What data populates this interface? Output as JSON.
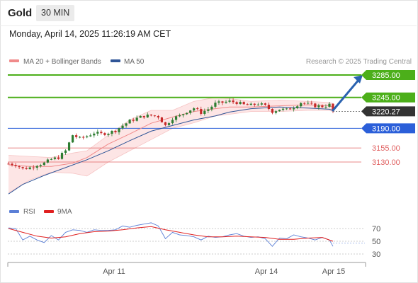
{
  "header": {
    "instrument": "Gold",
    "timeframe": "30 MIN"
  },
  "timestamp": "Monday, April 14, 2025 11:26:19 AM CET",
  "legend": {
    "items": [
      {
        "label": "MA 20 + Bollinger Bands",
        "color": "#f08a8a"
      },
      {
        "label": "MA 50",
        "color": "#2f5597"
      }
    ],
    "credit": "Research © 2025 Trading Central"
  },
  "indicator_legend": {
    "items": [
      {
        "label": "RSI",
        "color": "#5b7fd6"
      },
      {
        "label": "9MA",
        "color": "#e02020"
      }
    ]
  },
  "colors": {
    "resistance": "#4caf1a",
    "support_primary": "#2b5fd9",
    "support_secondary": "#e06060",
    "current_price_bg": "#333333",
    "arrow": "#2a62b0",
    "bull_candle": "#2e7d32",
    "bear_candle": "#c62828",
    "band_fill": "#fde0e0"
  },
  "chart_data": [
    {
      "type": "candlestick",
      "title": "Gold",
      "ylim": [
        3065,
        3300
      ],
      "x_ticks": [
        "Apr 11",
        "Apr 14",
        "Apr 15"
      ],
      "levels": [
        {
          "value": 3285.0,
          "label": "3285.00",
          "kind": "resistance"
        },
        {
          "value": 3245.0,
          "label": "3245.00",
          "kind": "resistance"
        },
        {
          "value": 3220.27,
          "label": "3220.27",
          "kind": "current"
        },
        {
          "value": 3190.0,
          "label": "3190.00",
          "kind": "support-primary"
        },
        {
          "value": 3155.0,
          "label": "3155.00",
          "kind": "support-secondary"
        },
        {
          "value": 3130.0,
          "label": "3130.00",
          "kind": "support-secondary"
        }
      ],
      "forecast_arrow": {
        "from": 3222,
        "to": 3285
      },
      "ma50": [
        [
          0,
          3073
        ],
        [
          20,
          3090
        ],
        [
          50,
          3106
        ],
        [
          80,
          3120
        ],
        [
          110,
          3134
        ],
        [
          140,
          3150
        ],
        [
          170,
          3168
        ],
        [
          200,
          3185
        ],
        [
          230,
          3195
        ],
        [
          260,
          3205
        ],
        [
          290,
          3212
        ],
        [
          310,
          3219
        ],
        [
          340,
          3225
        ],
        [
          380,
          3228
        ],
        [
          420,
          3226
        ],
        [
          450,
          3224
        ],
        [
          455,
          3222
        ]
      ],
      "ma20": [
        [
          0,
          3125
        ],
        [
          30,
          3122
        ],
        [
          60,
          3122
        ],
        [
          90,
          3128
        ],
        [
          110,
          3138
        ],
        [
          140,
          3162
        ],
        [
          170,
          3180
        ],
        [
          200,
          3199
        ],
        [
          230,
          3210
        ],
        [
          260,
          3220
        ],
        [
          290,
          3225
        ],
        [
          310,
          3228
        ],
        [
          340,
          3228
        ],
        [
          380,
          3230
        ],
        [
          420,
          3232
        ],
        [
          450,
          3230
        ],
        [
          455,
          3228
        ]
      ],
      "bb_upper": [
        [
          0,
          3142
        ],
        [
          30,
          3140
        ],
        [
          60,
          3138
        ],
        [
          90,
          3146
        ],
        [
          110,
          3150
        ],
        [
          140,
          3178
        ],
        [
          170,
          3205
        ],
        [
          200,
          3222
        ],
        [
          230,
          3222
        ],
        [
          260,
          3238
        ],
        [
          290,
          3245
        ],
        [
          310,
          3243
        ],
        [
          340,
          3238
        ],
        [
          380,
          3240
        ],
        [
          420,
          3238
        ],
        [
          450,
          3236
        ],
        [
          455,
          3234
        ]
      ],
      "bb_lower": [
        [
          0,
          3075
        ],
        [
          30,
          3098
        ],
        [
          60,
          3112
        ],
        [
          90,
          3110
        ],
        [
          110,
          3105
        ],
        [
          140,
          3130
        ],
        [
          170,
          3150
        ],
        [
          200,
          3170
        ],
        [
          230,
          3190
        ],
        [
          260,
          3200
        ],
        [
          290,
          3212
        ],
        [
          310,
          3215
        ],
        [
          340,
          3220
        ],
        [
          380,
          3220
        ],
        [
          420,
          3222
        ],
        [
          450,
          3222
        ],
        [
          455,
          3220
        ]
      ],
      "close": [
        [
          0,
          3127
        ],
        [
          10,
          3125
        ],
        [
          20,
          3118
        ],
        [
          30,
          3120
        ],
        [
          40,
          3125
        ],
        [
          50,
          3128
        ],
        [
          60,
          3135
        ],
        [
          70,
          3138
        ],
        [
          80,
          3150
        ],
        [
          90,
          3178
        ],
        [
          100,
          3172
        ],
        [
          110,
          3176
        ],
        [
          120,
          3182
        ],
        [
          130,
          3180
        ],
        [
          140,
          3182
        ],
        [
          150,
          3186
        ],
        [
          160,
          3195
        ],
        [
          170,
          3203
        ],
        [
          180,
          3208
        ],
        [
          190,
          3212
        ],
        [
          200,
          3213
        ],
        [
          210,
          3211
        ],
        [
          220,
          3195
        ],
        [
          230,
          3208
        ],
        [
          240,
          3212
        ],
        [
          250,
          3220
        ],
        [
          260,
          3226
        ],
        [
          270,
          3218
        ],
        [
          280,
          3224
        ],
        [
          290,
          3234
        ],
        [
          300,
          3236
        ],
        [
          310,
          3238
        ],
        [
          320,
          3236
        ],
        [
          330,
          3232
        ],
        [
          340,
          3231
        ],
        [
          350,
          3234
        ],
        [
          360,
          3230
        ],
        [
          370,
          3220
        ],
        [
          380,
          3224
        ],
        [
          390,
          3223
        ],
        [
          400,
          3228
        ],
        [
          410,
          3236
        ],
        [
          420,
          3233
        ],
        [
          430,
          3230
        ],
        [
          440,
          3229
        ],
        [
          450,
          3232
        ],
        [
          455,
          3220
        ]
      ]
    },
    {
      "type": "line",
      "title": "",
      "ylim": [
        20,
        82
      ],
      "y_ticks": [
        70,
        50,
        30
      ],
      "series": [
        {
          "name": "RSI",
          "values": [
            [
              0,
              71
            ],
            [
              10,
              70
            ],
            [
              20,
              52
            ],
            [
              30,
              58
            ],
            [
              40,
              52
            ],
            [
              50,
              48
            ],
            [
              60,
              59
            ],
            [
              70,
              52
            ],
            [
              80,
              64
            ],
            [
              90,
              68
            ],
            [
              100,
              67
            ],
            [
              110,
              64
            ],
            [
              120,
              68
            ],
            [
              130,
              67
            ],
            [
              140,
              67
            ],
            [
              150,
              68
            ],
            [
              160,
              74
            ],
            [
              170,
              72
            ],
            [
              180,
              75
            ],
            [
              190,
              77
            ],
            [
              200,
              79
            ],
            [
              210,
              74
            ],
            [
              220,
              54
            ],
            [
              230,
              64
            ],
            [
              240,
              60
            ],
            [
              250,
              59
            ],
            [
              260,
              57
            ],
            [
              270,
              52
            ],
            [
              280,
              58
            ],
            [
              290,
              56
            ],
            [
              300,
              57
            ],
            [
              310,
              60
            ],
            [
              320,
              62
            ],
            [
              330,
              58
            ],
            [
              340,
              56
            ],
            [
              350,
              57
            ],
            [
              360,
              54
            ],
            [
              370,
              42
            ],
            [
              380,
              55
            ],
            [
              390,
              54
            ],
            [
              400,
              60
            ],
            [
              410,
              57
            ],
            [
              420,
              55
            ],
            [
              430,
              52
            ],
            [
              440,
              56
            ],
            [
              450,
              52
            ],
            [
              455,
              42
            ]
          ]
        },
        {
          "name": "9MA",
          "values": [
            [
              0,
              70
            ],
            [
              20,
              64
            ],
            [
              40,
              58
            ],
            [
              60,
              55
            ],
            [
              80,
              57
            ],
            [
              100,
              62
            ],
            [
              120,
              65
            ],
            [
              140,
              66
            ],
            [
              160,
              68
            ],
            [
              180,
              71
            ],
            [
              200,
              73
            ],
            [
              220,
              68
            ],
            [
              240,
              64
            ],
            [
              260,
              60
            ],
            [
              280,
              57
            ],
            [
              300,
              57
            ],
            [
              320,
              58
            ],
            [
              340,
              57
            ],
            [
              360,
              56
            ],
            [
              380,
              53
            ],
            [
              400,
              53
            ],
            [
              420,
              55
            ],
            [
              440,
              56
            ],
            [
              455,
              50
            ]
          ]
        }
      ]
    }
  ]
}
